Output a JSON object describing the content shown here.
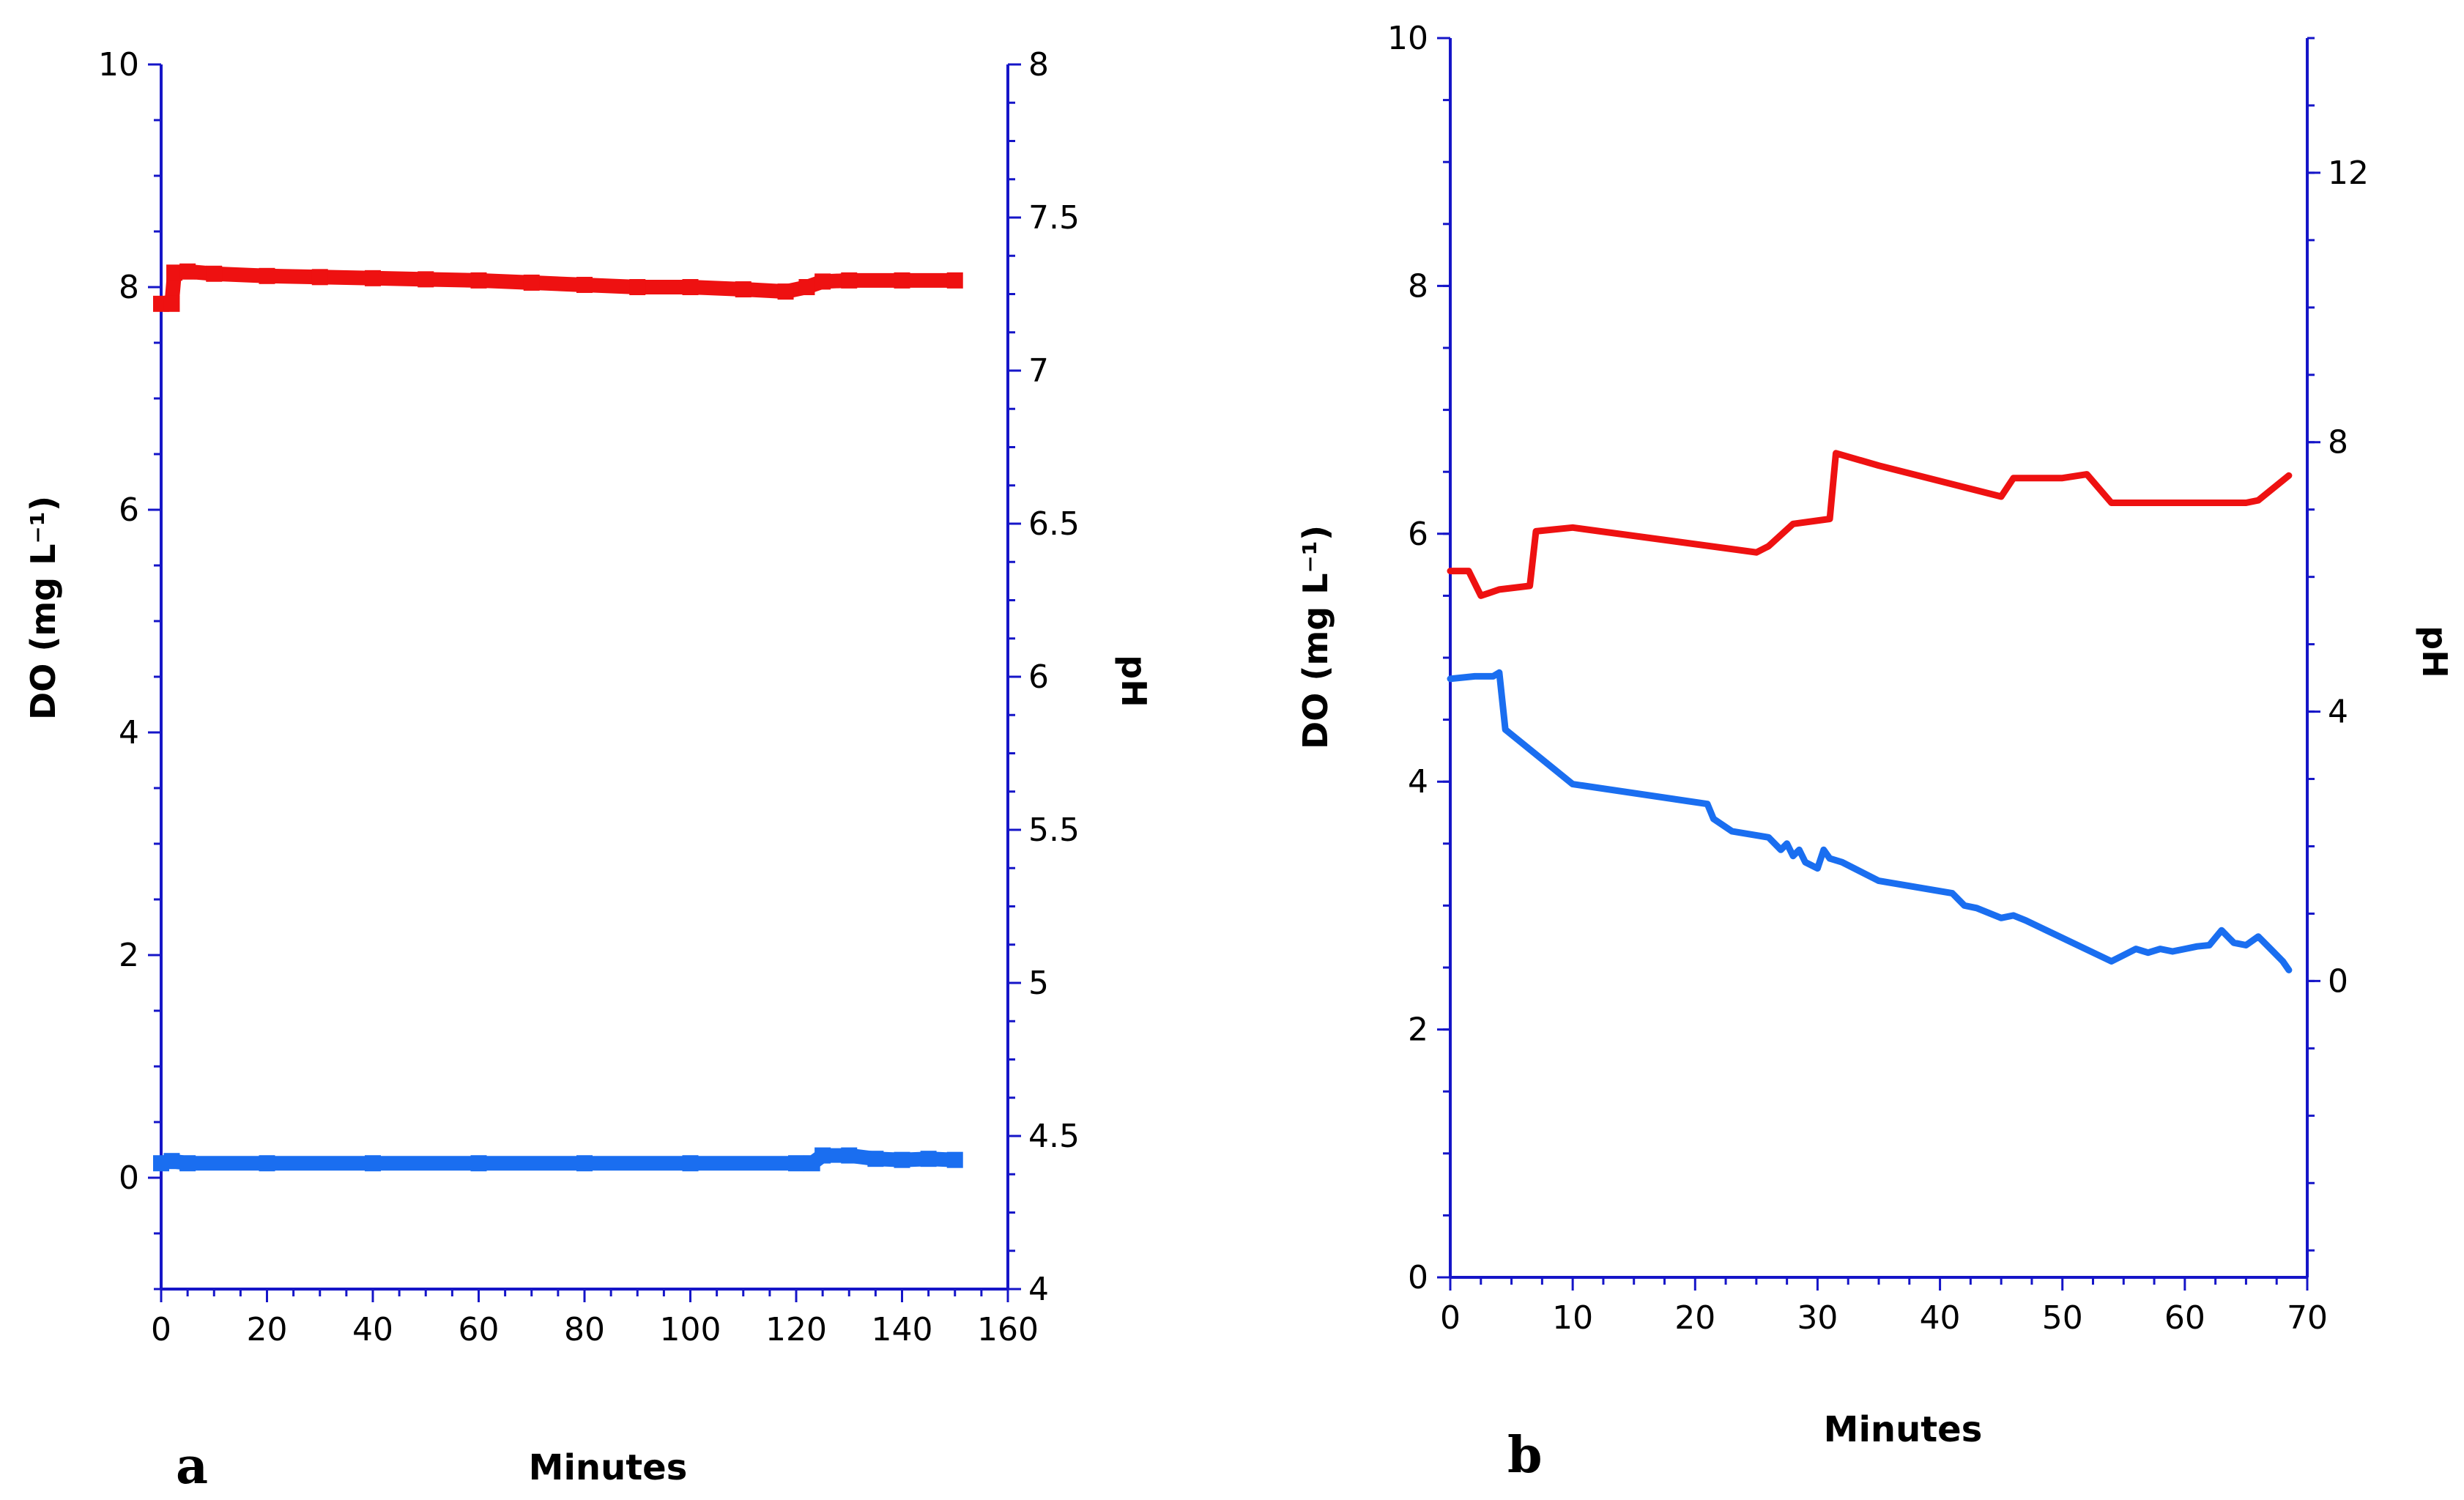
{
  "chart_data": [
    {
      "panel_label": "a",
      "type": "line",
      "title": "",
      "xlabel": "Minutes",
      "ylabel": "DO (mg L⁻¹)",
      "y2label": "pH",
      "xlim": [
        0,
        160
      ],
      "ylim": [
        -1,
        10
      ],
      "y2lim": [
        4,
        8
      ],
      "x_ticks": [
        0,
        20,
        40,
        60,
        80,
        100,
        120,
        140,
        160
      ],
      "x_tick_labels": [
        "0",
        "20",
        "40",
        "60",
        "80",
        "100",
        "120",
        "140",
        "160"
      ],
      "y_ticks": [
        0,
        2,
        4,
        6,
        8,
        10
      ],
      "y_tick_labels": [
        "0",
        "2",
        "4",
        "6",
        "8",
        "10"
      ],
      "y2_ticks": [
        4,
        4.5,
        5,
        5.5,
        6,
        6.5,
        7,
        7.5,
        8
      ],
      "y2_tick_labels": [
        "4",
        "4.5",
        "5",
        "5.5",
        "6",
        "6.5",
        "7",
        "7.5",
        "8"
      ],
      "series": [
        {
          "name": "red series",
          "color": "#ee1111",
          "axis": "left",
          "x": [
            0,
            2,
            2.5,
            5,
            10,
            20,
            30,
            40,
            50,
            60,
            70,
            80,
            90,
            100,
            110,
            118,
            122,
            125,
            130,
            140,
            150
          ],
          "values": [
            7.85,
            7.85,
            8.13,
            8.14,
            8.12,
            8.1,
            8.09,
            8.08,
            8.07,
            8.06,
            8.04,
            8.02,
            8.0,
            8.0,
            7.98,
            7.96,
            8.0,
            8.05,
            8.06,
            8.06,
            8.06
          ]
        },
        {
          "name": "blue series",
          "color": "#1a6ef0",
          "axis": "left",
          "x": [
            0,
            2,
            5,
            20,
            40,
            60,
            80,
            100,
            120,
            123,
            125,
            130,
            135,
            140,
            145,
            150
          ],
          "values": [
            0.13,
            0.15,
            0.13,
            0.13,
            0.13,
            0.13,
            0.13,
            0.13,
            0.13,
            0.13,
            0.2,
            0.2,
            0.17,
            0.16,
            0.17,
            0.16
          ]
        }
      ]
    },
    {
      "panel_label": "b",
      "type": "line",
      "title": "",
      "xlabel": "Minutes",
      "ylabel": "DO (mg L⁻¹)",
      "y2label": "pH",
      "xlim": [
        0,
        70
      ],
      "ylim": [
        0,
        10
      ],
      "y2lim": [
        -4.4,
        14
      ],
      "x_ticks": [
        0,
        10,
        20,
        30,
        40,
        50,
        60,
        70
      ],
      "x_tick_labels": [
        "0",
        "10",
        "20",
        "30",
        "40",
        "50",
        "60",
        "70"
      ],
      "y_ticks": [
        0,
        2,
        4,
        6,
        8,
        10
      ],
      "y_tick_labels": [
        "0",
        "2",
        "4",
        "6",
        "8",
        "10"
      ],
      "y2_ticks": [
        0,
        4,
        8,
        12
      ],
      "y2_tick_labels": [
        "0",
        "4",
        "8",
        "12"
      ],
      "series": [
        {
          "name": "red series",
          "color": "#ee1111",
          "axis": "left",
          "x": [
            0,
            1.5,
            2.5,
            4,
            6.5,
            7,
            10,
            25,
            26,
            28,
            31,
            31.5,
            35,
            45,
            46,
            50,
            52,
            54,
            60,
            65,
            66,
            68.5
          ],
          "values": [
            5.7,
            5.7,
            5.5,
            5.55,
            5.58,
            6.02,
            6.05,
            5.85,
            5.9,
            6.08,
            6.12,
            6.65,
            6.55,
            6.3,
            6.45,
            6.45,
            6.48,
            6.25,
            6.25,
            6.25,
            6.27,
            6.47
          ]
        },
        {
          "name": "blue series",
          "color": "#1a6ef0",
          "axis": "left",
          "x": [
            0,
            2,
            3.5,
            4,
            4.5,
            10,
            21,
            21.5,
            23,
            26,
            27,
            27.5,
            28,
            28.5,
            29,
            30,
            30.5,
            31,
            32,
            35,
            41,
            41.5,
            42,
            43,
            45,
            46,
            47,
            54,
            55,
            56,
            57,
            58,
            59,
            60,
            61,
            62,
            63,
            64,
            65,
            66,
            67,
            68,
            68.5
          ],
          "values": [
            4.83,
            4.85,
            4.85,
            4.88,
            4.42,
            3.98,
            3.82,
            3.7,
            3.6,
            3.55,
            3.45,
            3.5,
            3.4,
            3.45,
            3.35,
            3.3,
            3.45,
            3.38,
            3.35,
            3.2,
            3.1,
            3.05,
            3.0,
            2.98,
            2.9,
            2.92,
            2.88,
            2.55,
            2.6,
            2.65,
            2.62,
            2.65,
            2.63,
            2.65,
            2.67,
            2.68,
            2.8,
            2.7,
            2.68,
            2.75,
            2.65,
            2.55,
            2.48
          ]
        }
      ]
    }
  ]
}
